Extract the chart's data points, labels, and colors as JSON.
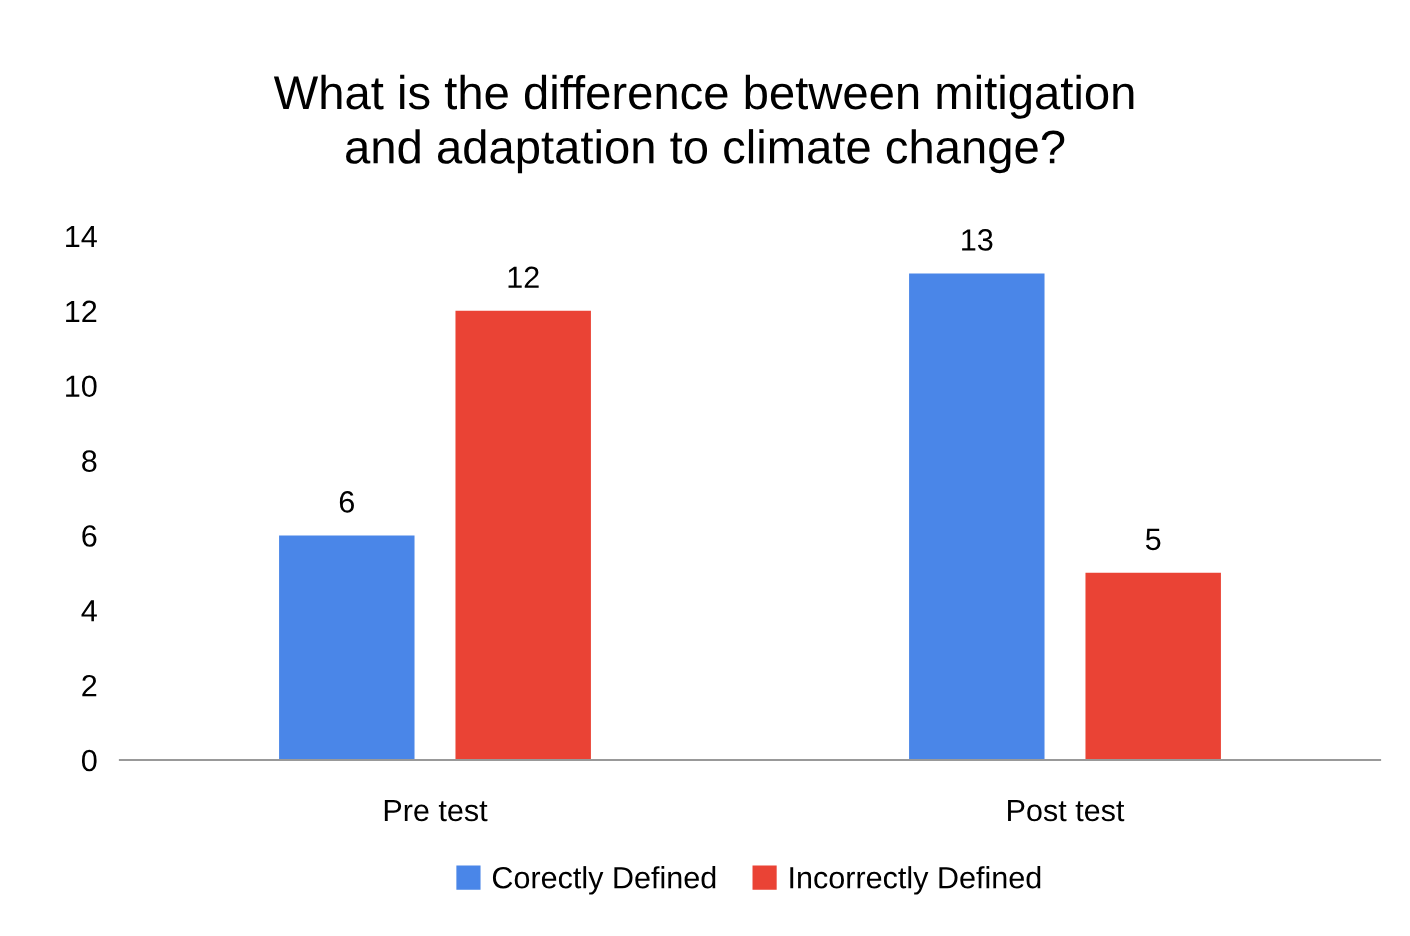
{
  "chart_data": {
    "type": "bar",
    "title": "What is the difference between mitigation\nand adaptation to climate change?",
    "categories": [
      "Pre test",
      "Post test"
    ],
    "series": [
      {
        "name": "Corectly Defined",
        "color": "#4a86e8",
        "values": [
          6,
          13
        ]
      },
      {
        "name": "Incorrectly Defined",
        "color": "#ea4335",
        "values": [
          12,
          5
        ]
      }
    ],
    "ylim": [
      0,
      14
    ],
    "yticks": [
      0,
      2,
      4,
      6,
      8,
      10,
      12,
      14
    ],
    "grid": false,
    "legend": "bottom",
    "data_labels": true
  }
}
